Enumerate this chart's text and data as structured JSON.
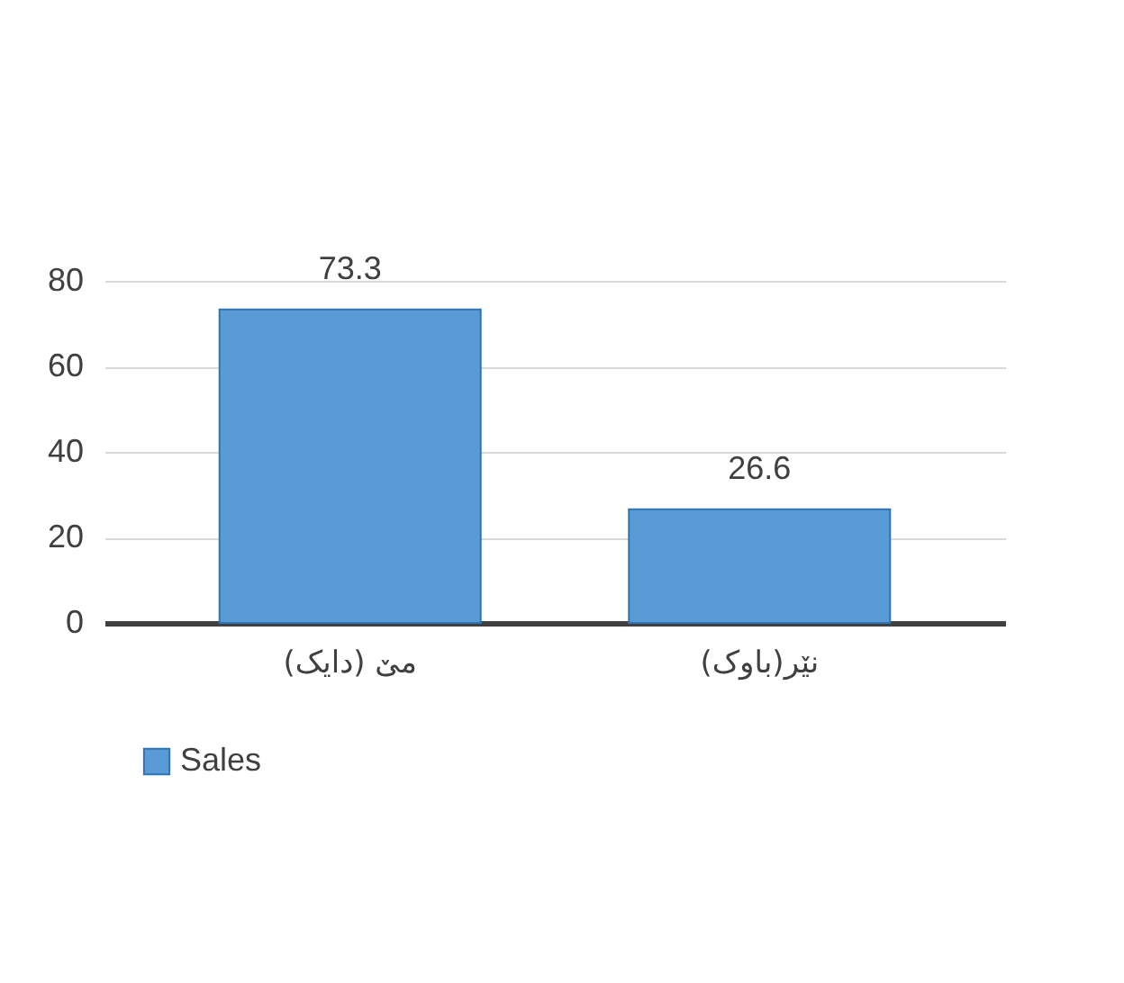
{
  "chart_data": {
    "type": "bar",
    "categories": [
      "مێ (دایک)",
      "نێر(باوک)"
    ],
    "series": [
      {
        "name": "Sales",
        "color": "#5b9bd5",
        "values": [
          73.3,
          26.6
        ]
      }
    ],
    "ylim": [
      0,
      80
    ],
    "yticks": [
      0,
      20,
      40,
      60,
      80
    ],
    "grid": "y",
    "data_labels": true,
    "legend": "bottom"
  }
}
